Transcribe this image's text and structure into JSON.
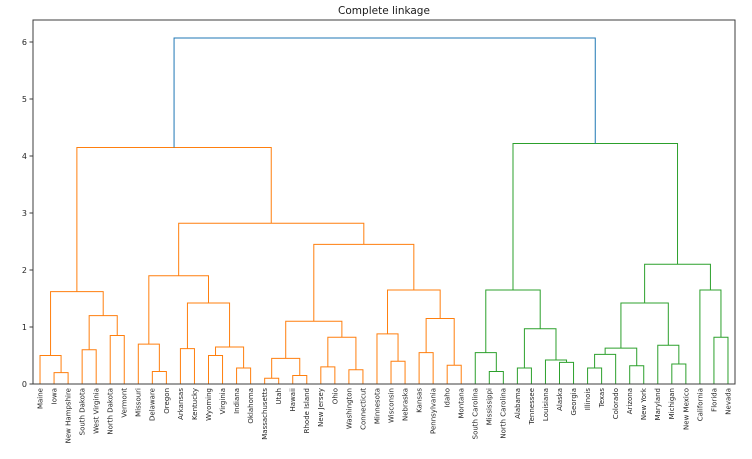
{
  "chart_data": {
    "type": "dendrogram",
    "title": "Complete linkage",
    "xlabel": "",
    "ylabel": "",
    "y_ticks": [
      0,
      1,
      2,
      3,
      4,
      5,
      6
    ],
    "ylim": [
      0,
      6.4
    ],
    "grid": false,
    "legend_position": "none",
    "colors": {
      "root_link": "#1f77b4",
      "left_cluster": "#ff7f0e",
      "right_cluster": "#2ca02c",
      "axis": "#3c3c3c",
      "background": "#ffffff"
    },
    "leaf_labels": [
      "Maine",
      "Iowa",
      "New Hampshire",
      "South Dakota",
      "West Virginia",
      "North Dakota",
      "Vermont",
      "Missouri",
      "Delaware",
      "Oregon",
      "Arkansas",
      "Kentucky",
      "Wyoming",
      "Virginia",
      "Indiana",
      "Oklahoma",
      "Massachusetts",
      "Utah",
      "Hawaii",
      "Rhode Island",
      "New Jersey",
      "Ohio",
      "Washington",
      "Connecticut",
      "Minnesota",
      "Wisconsin",
      "Nebraska",
      "Kansas",
      "Pennsylvania",
      "Idaho",
      "Montana",
      "South Carolina",
      "Mississippi",
      "North Carolina",
      "Alabama",
      "Tennessee",
      "Louisiana",
      "Alaska",
      "Georgia",
      "Illinois",
      "Texas",
      "Colorado",
      "Arizona",
      "New York",
      "Maryland",
      "Michigan",
      "New Mexico",
      "California",
      "Florida",
      "Nevada"
    ],
    "tree": {
      "h": 6.07,
      "color": "#1f77b4",
      "children": [
        {
          "h": 4.15,
          "color": "#ff7f0e",
          "children": [
            {
              "h": 1.62,
              "children": [
                {
                  "h": 0.5,
                  "children": [
                    {
                      "leaf": "Maine"
                    },
                    {
                      "h": 0.2,
                      "children": [
                        {
                          "leaf": "Iowa"
                        },
                        {
                          "leaf": "New Hampshire"
                        }
                      ]
                    }
                  ]
                },
                {
                  "h": 1.2,
                  "children": [
                    {
                      "h": 0.6,
                      "children": [
                        {
                          "leaf": "South Dakota"
                        },
                        {
                          "leaf": "West Virginia"
                        }
                      ]
                    },
                    {
                      "h": 0.85,
                      "children": [
                        {
                          "leaf": "North Dakota"
                        },
                        {
                          "leaf": "Vermont"
                        }
                      ]
                    }
                  ]
                }
              ]
            },
            {
              "h": 2.82,
              "children": [
                {
                  "h": 1.9,
                  "children": [
                    {
                      "h": 0.7,
                      "children": [
                        {
                          "leaf": "Missouri"
                        },
                        {
                          "h": 0.22,
                          "children": [
                            {
                              "leaf": "Delaware"
                            },
                            {
                              "leaf": "Oregon"
                            }
                          ]
                        }
                      ]
                    },
                    {
                      "h": 1.42,
                      "children": [
                        {
                          "h": 0.62,
                          "children": [
                            {
                              "leaf": "Arkansas"
                            },
                            {
                              "leaf": "Kentucky"
                            }
                          ]
                        },
                        {
                          "h": 0.65,
                          "children": [
                            {
                              "h": 0.5,
                              "children": [
                                {
                                  "leaf": "Wyoming"
                                },
                                {
                                  "leaf": "Virginia"
                                }
                              ]
                            },
                            {
                              "h": 0.28,
                              "children": [
                                {
                                  "leaf": "Indiana"
                                },
                                {
                                  "leaf": "Oklahoma"
                                }
                              ]
                            }
                          ]
                        }
                      ]
                    }
                  ]
                },
                {
                  "h": 2.45,
                  "children": [
                    {
                      "h": 1.1,
                      "children": [
                        {
                          "h": 0.45,
                          "children": [
                            {
                              "h": 0.1,
                              "children": [
                                {
                                  "leaf": "Massachusetts"
                                },
                                {
                                  "leaf": "Utah"
                                }
                              ]
                            },
                            {
                              "h": 0.15,
                              "children": [
                                {
                                  "leaf": "Hawaii"
                                },
                                {
                                  "leaf": "Rhode Island"
                                }
                              ]
                            }
                          ]
                        },
                        {
                          "h": 0.82,
                          "children": [
                            {
                              "h": 0.3,
                              "children": [
                                {
                                  "leaf": "New Jersey"
                                },
                                {
                                  "leaf": "Ohio"
                                }
                              ]
                            },
                            {
                              "h": 0.25,
                              "children": [
                                {
                                  "leaf": "Washington"
                                },
                                {
                                  "leaf": "Connecticut"
                                }
                              ]
                            }
                          ]
                        }
                      ]
                    },
                    {
                      "h": 1.65,
                      "children": [
                        {
                          "h": 0.88,
                          "children": [
                            {
                              "leaf": "Minnesota"
                            },
                            {
                              "h": 0.4,
                              "children": [
                                {
                                  "leaf": "Wisconsin"
                                },
                                {
                                  "leaf": "Nebraska"
                                }
                              ]
                            }
                          ]
                        },
                        {
                          "h": 1.15,
                          "children": [
                            {
                              "h": 0.55,
                              "children": [
                                {
                                  "leaf": "Kansas"
                                },
                                {
                                  "leaf": "Pennsylvania"
                                }
                              ]
                            },
                            {
                              "h": 0.33,
                              "children": [
                                {
                                  "leaf": "Idaho"
                                },
                                {
                                  "leaf": "Montana"
                                }
                              ]
                            }
                          ]
                        }
                      ]
                    }
                  ]
                }
              ]
            }
          ]
        },
        {
          "h": 4.22,
          "color": "#2ca02c",
          "children": [
            {
              "h": 1.65,
              "children": [
                {
                  "h": 0.55,
                  "children": [
                    {
                      "leaf": "South Carolina"
                    },
                    {
                      "h": 0.22,
                      "children": [
                        {
                          "leaf": "Mississippi"
                        },
                        {
                          "leaf": "North Carolina"
                        }
                      ]
                    }
                  ]
                },
                {
                  "h": 0.97,
                  "children": [
                    {
                      "h": 0.28,
                      "children": [
                        {
                          "leaf": "Alabama"
                        },
                        {
                          "leaf": "Tennessee"
                        }
                      ]
                    },
                    {
                      "h": 0.42,
                      "children": [
                        {
                          "leaf": "Louisiana"
                        },
                        {
                          "h": 0.38,
                          "children": [
                            {
                              "leaf": "Alaska"
                            },
                            {
                              "leaf": "Georgia"
                            }
                          ]
                        }
                      ]
                    }
                  ]
                }
              ]
            },
            {
              "h": 2.1,
              "children": [
                {
                  "h": 1.42,
                  "children": [
                    {
                      "h": 0.63,
                      "children": [
                        {
                          "h": 0.52,
                          "children": [
                            {
                              "h": 0.28,
                              "children": [
                                {
                                  "leaf": "Illinois"
                                },
                                {
                                  "leaf": "Texas"
                                }
                              ]
                            },
                            {
                              "leaf": "Colorado"
                            }
                          ]
                        },
                        {
                          "h": 0.32,
                          "children": [
                            {
                              "leaf": "Arizona"
                            },
                            {
                              "leaf": "New York"
                            }
                          ]
                        }
                      ]
                    },
                    {
                      "h": 0.68,
                      "children": [
                        {
                          "leaf": "Maryland"
                        },
                        {
                          "h": 0.35,
                          "children": [
                            {
                              "leaf": "Michigan"
                            },
                            {
                              "leaf": "New Mexico"
                            }
                          ]
                        }
                      ]
                    }
                  ]
                },
                {
                  "h": 1.65,
                  "children": [
                    {
                      "leaf": "California"
                    },
                    {
                      "h": 0.82,
                      "children": [
                        {
                          "leaf": "Florida"
                        },
                        {
                          "leaf": "Nevada"
                        }
                      ]
                    }
                  ]
                }
              ]
            }
          ]
        }
      ]
    }
  }
}
